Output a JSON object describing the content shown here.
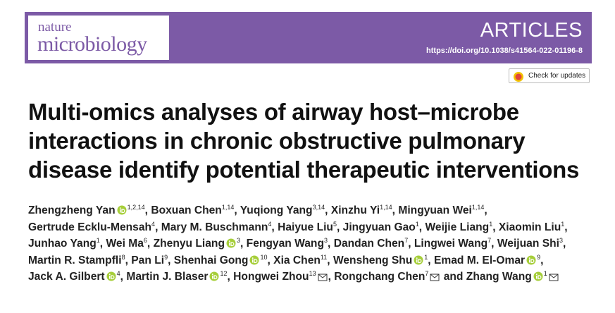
{
  "header": {
    "journal_small": "nature",
    "journal_large": "microbiology",
    "section": "ARTICLES",
    "doi": "https://doi.org/10.1038/s41564-022-01196-8"
  },
  "check_updates": "Check for updates",
  "title_lines": [
    "Multi-omics analyses of airway host–microbe",
    "interactions in chronic obstructive pulmonary",
    "disease identify potential therapeutic interventions"
  ],
  "authors": {
    "separator": ",",
    "conjunction": "and",
    "list": [
      {
        "name": "Zhengzheng Yan",
        "affiliations": "1,2,14",
        "orcid": true
      },
      {
        "name": "Boxuan Chen",
        "affiliations": "1,14"
      },
      {
        "name": "Yuqiong Yang",
        "affiliations": "3,14"
      },
      {
        "name": "Xinzhu Yi",
        "affiliations": "1,14"
      },
      {
        "name": "Mingyuan Wei",
        "affiliations": "1,14"
      },
      {
        "name": "Gertrude Ecklu-Mensah",
        "affiliations": "4"
      },
      {
        "name": "Mary M. Buschmann",
        "affiliations": "4"
      },
      {
        "name": "Haiyue Liu",
        "affiliations": "5"
      },
      {
        "name": "Jingyuan Gao",
        "affiliations": "1"
      },
      {
        "name": "Weijie Liang",
        "affiliations": "1"
      },
      {
        "name": "Xiaomin Liu",
        "affiliations": "1"
      },
      {
        "name": "Junhao Yang",
        "affiliations": "1"
      },
      {
        "name": "Wei Ma",
        "affiliations": "6"
      },
      {
        "name": "Zhenyu Liang",
        "affiliations": "3",
        "orcid": true
      },
      {
        "name": "Fengyan Wang",
        "affiliations": "3"
      },
      {
        "name": "Dandan Chen",
        "affiliations": "7"
      },
      {
        "name": "Lingwei Wang",
        "affiliations": "7"
      },
      {
        "name": "Weijuan Shi",
        "affiliations": "3"
      },
      {
        "name": "Martin R. Stampfli",
        "affiliations": "8"
      },
      {
        "name": "Pan Li",
        "affiliations": "9"
      },
      {
        "name": "Shenhai Gong",
        "affiliations": "10",
        "orcid": true
      },
      {
        "name": "Xia Chen",
        "affiliations": "11"
      },
      {
        "name": "Wensheng Shu",
        "affiliations": "1",
        "orcid": true
      },
      {
        "name": "Emad M. El-Omar",
        "affiliations": "9",
        "orcid": true
      },
      {
        "name": "Jack A. Gilbert",
        "affiliations": "4",
        "orcid": true
      },
      {
        "name": "Martin J. Blaser",
        "affiliations": "12",
        "orcid": true
      },
      {
        "name": "Hongwei Zhou",
        "affiliations": "13",
        "corresponding": true
      },
      {
        "name": "Rongchang Chen",
        "affiliations": "7",
        "corresponding": true
      },
      {
        "name": "Zhang Wang",
        "affiliations": "1",
        "orcid": true,
        "corresponding": true
      }
    ]
  }
}
